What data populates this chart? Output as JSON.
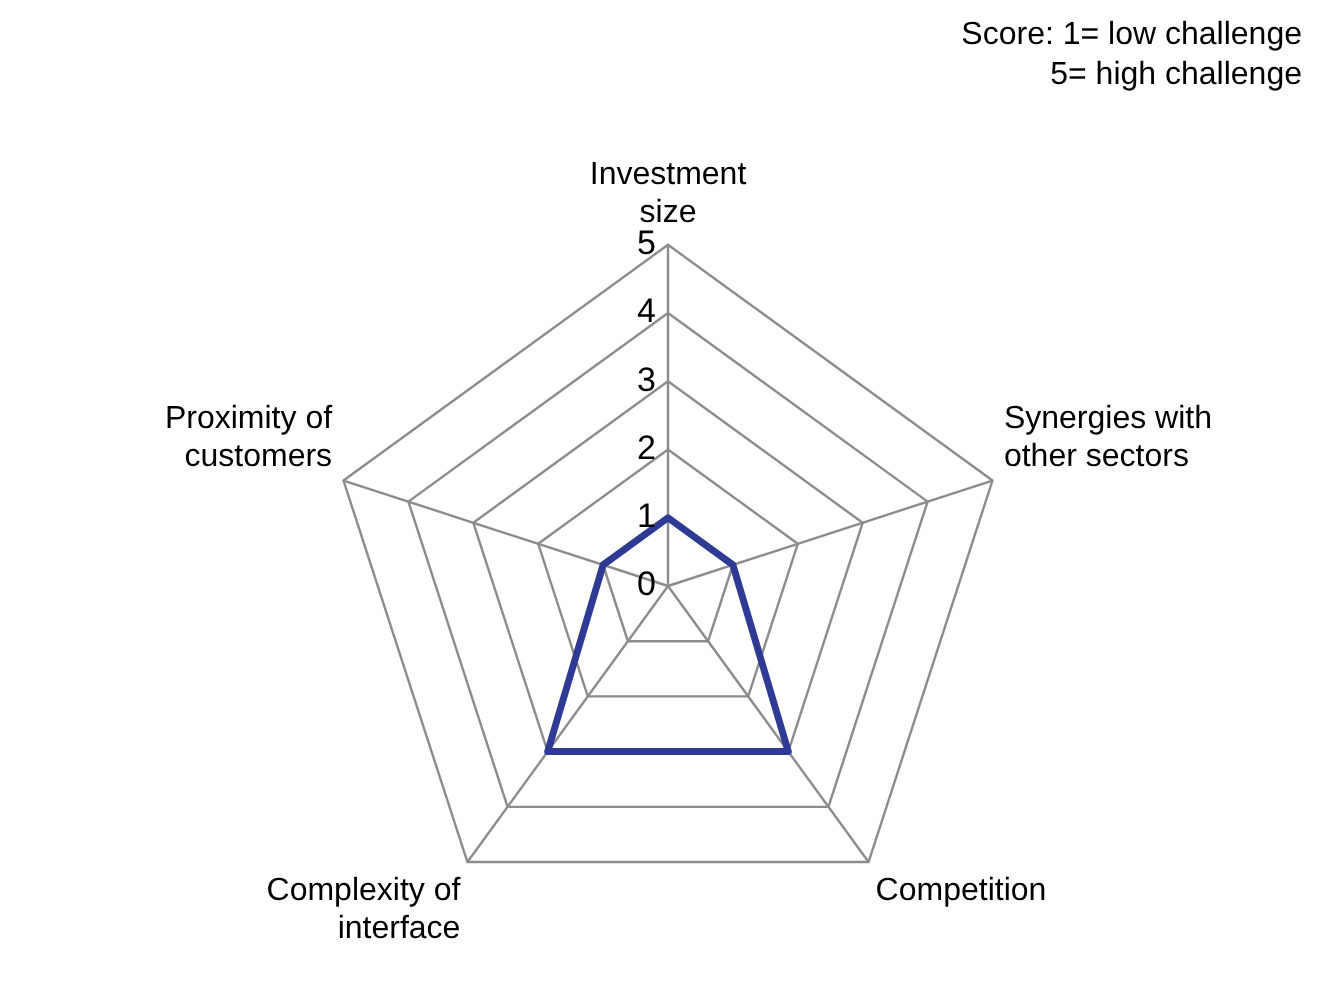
{
  "chart_data": {
    "type": "radar",
    "categories": [
      "Investment size",
      "Synergies with other sectors",
      "Competition",
      "Complexity of interface",
      "Proximity of customers"
    ],
    "series": [
      {
        "color": "#2e3a93",
        "values": [
          1,
          1,
          3,
          3,
          1
        ]
      }
    ],
    "ylim": [
      0,
      5
    ],
    "yticks": [
      0,
      1,
      2,
      3,
      4,
      5
    ],
    "grid": true,
    "legend": false,
    "marker": "none",
    "line_style": "solid",
    "annotations": [
      "Score: 1= low challenge\n5= high challenge"
    ]
  }
}
